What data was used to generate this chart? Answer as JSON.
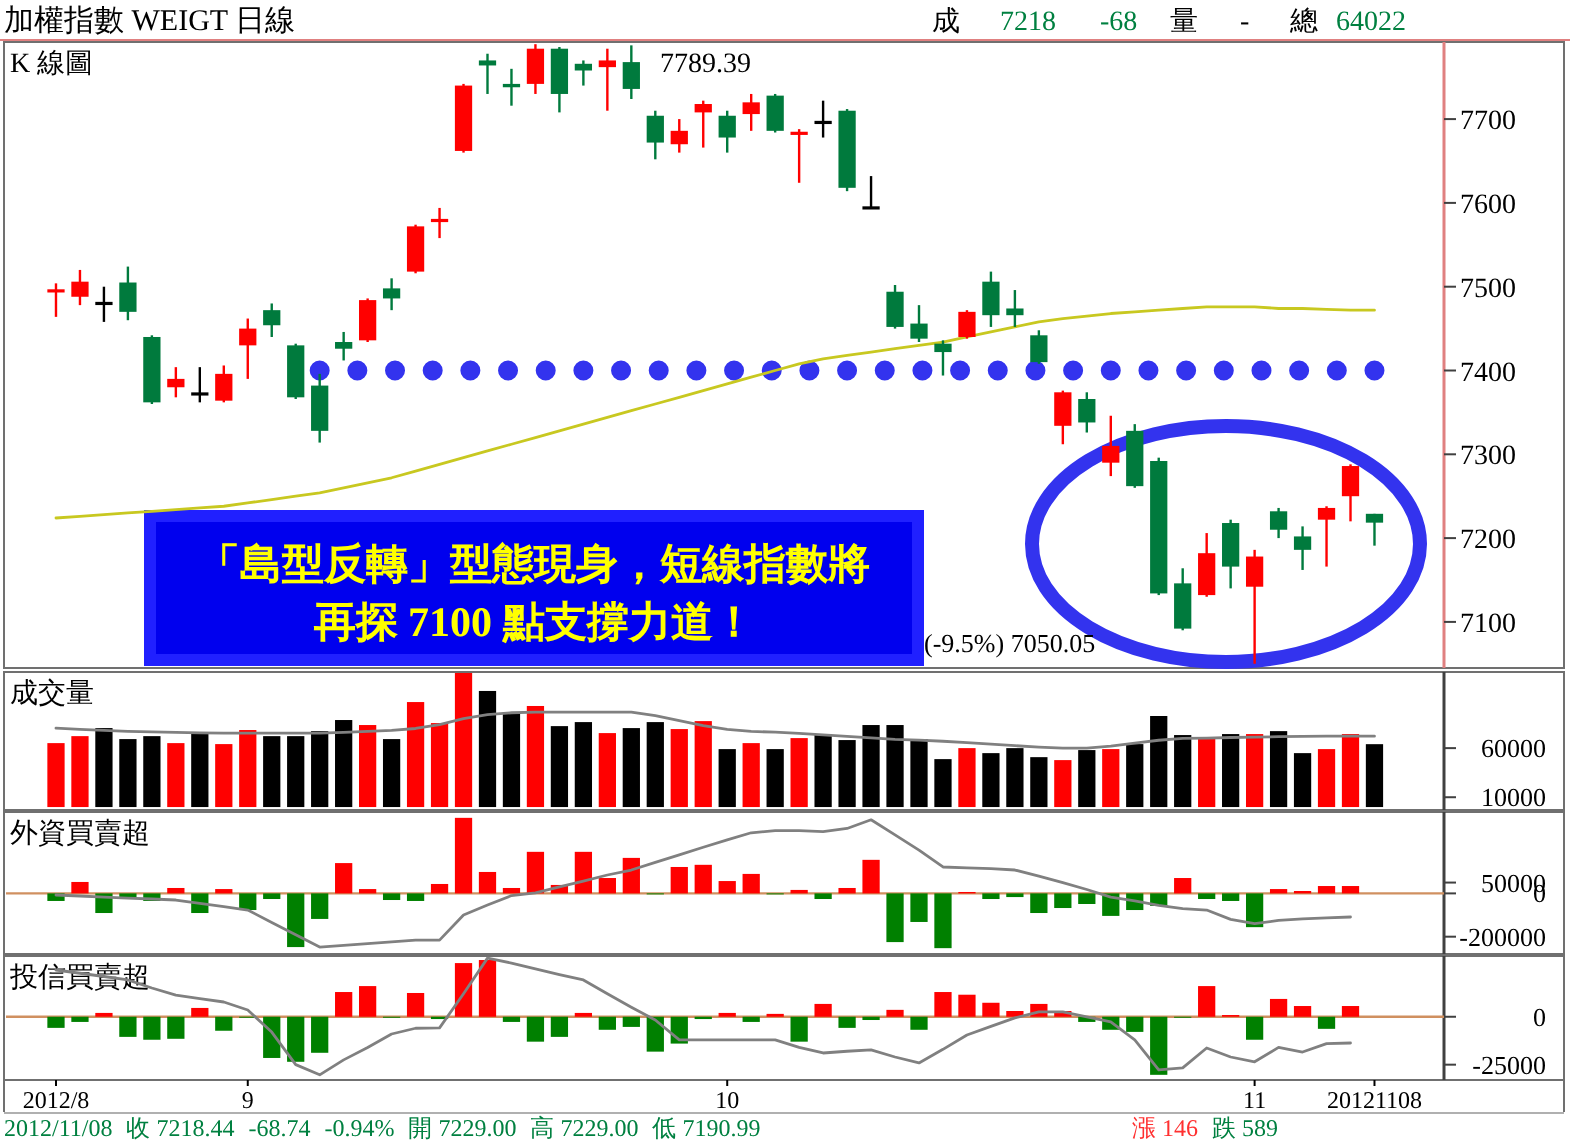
{
  "chart_data": [
    {
      "type": "candlestick",
      "title": "加權指數  WEIGT  日線",
      "subtitle": "K 線圖",
      "tick_labels": "y",
      "categories": [
        null,
        null,
        null,
        null,
        null,
        null,
        null,
        null,
        null,
        null,
        null,
        null,
        null,
        null,
        null,
        null,
        null,
        null,
        null,
        null,
        null,
        null,
        null,
        null,
        null,
        null,
        null,
        null,
        null,
        null,
        null,
        null,
        null,
        null,
        null,
        null,
        null,
        null,
        null,
        null,
        null,
        null,
        null,
        null,
        null,
        null,
        null,
        null,
        null,
        null,
        null,
        null,
        null,
        null,
        null,
        null
      ],
      "ylim": [
        7045,
        7792
      ],
      "yticks": [
        7100,
        7200,
        7300,
        7400,
        7500,
        7600,
        7700
      ],
      "ohlc": [
        [
          7494,
          7504,
          7464,
          7496
        ],
        [
          7488,
          7520,
          7478,
          7506
        ],
        [
          7480,
          7500,
          7458,
          7480
        ],
        [
          7505,
          7524,
          7460,
          7470
        ],
        [
          7440,
          7442,
          7360,
          7362
        ],
        [
          7380,
          7404,
          7368,
          7390
        ],
        [
          7372,
          7404,
          7362,
          7372
        ],
        [
          7364,
          7406,
          7362,
          7396
        ],
        [
          7430,
          7462,
          7390,
          7450
        ],
        [
          7472,
          7480,
          7440,
          7454
        ],
        [
          7430,
          7432,
          7366,
          7368
        ],
        [
          7382,
          7396,
          7314,
          7328
        ],
        [
          7434,
          7446,
          7412,
          7426
        ],
        [
          7436,
          7486,
          7434,
          7484
        ],
        [
          7498,
          7510,
          7472,
          7486
        ],
        [
          7518,
          7574,
          7516,
          7572
        ],
        [
          7578,
          7594,
          7558,
          7580
        ],
        [
          7662,
          7742,
          7660,
          7740
        ],
        [
          7770,
          7778,
          7730,
          7764
        ],
        [
          7742,
          7760,
          7716,
          7738
        ],
        [
          7742,
          7789.39,
          7730,
          7784
        ],
        [
          7784,
          7786,
          7708,
          7730
        ],
        [
          7766,
          7770,
          7740,
          7758
        ],
        [
          7762,
          7784,
          7710,
          7770
        ],
        [
          7768,
          7788,
          7724,
          7736
        ],
        [
          7704,
          7710,
          7652,
          7672
        ],
        [
          7670,
          7700,
          7660,
          7686
        ],
        [
          7708,
          7722,
          7666,
          7718
        ],
        [
          7704,
          7710,
          7660,
          7678
        ],
        [
          7706,
          7730,
          7686,
          7720
        ],
        [
          7728,
          7730,
          7684,
          7686
        ],
        [
          7682,
          7688,
          7624,
          7684
        ],
        [
          7696,
          7722,
          7678,
          7696
        ],
        [
          7710,
          7712,
          7614,
          7618
        ],
        [
          7594,
          7632,
          7594,
          7594
        ],
        [
          7494,
          7502,
          7450,
          7452
        ],
        [
          7456,
          7478,
          7434,
          7438
        ],
        [
          7432,
          7436,
          7394,
          7422
        ],
        [
          7440,
          7472,
          7438,
          7470
        ],
        [
          7506,
          7518,
          7452,
          7466
        ],
        [
          7474,
          7496,
          7452,
          7466
        ],
        [
          7442,
          7448,
          7408,
          7410
        ],
        [
          7334,
          7376,
          7312,
          7374
        ],
        [
          7366,
          7374,
          7326,
          7338
        ],
        [
          7290,
          7346,
          7274,
          7310
        ],
        [
          7328,
          7336,
          7260,
          7262
        ],
        [
          7292,
          7296,
          7132,
          7134
        ],
        [
          7146,
          7164,
          7090,
          7092
        ],
        [
          7132,
          7206,
          7130,
          7182
        ],
        [
          7218,
          7222,
          7140,
          7166
        ],
        [
          7142,
          7186,
          7050.05,
          7178
        ],
        [
          7232,
          7236,
          7200,
          7210
        ],
        [
          7202,
          7214,
          7162,
          7186
        ],
        [
          7222,
          7238,
          7166,
          7236
        ],
        [
          7250,
          7288,
          7220,
          7286
        ],
        [
          7229,
          7229,
          7190.99,
          7218.44
        ]
      ],
      "colors": [
        "#ff0000",
        "#ff0000",
        "#000000",
        "#007a3d",
        "#007a3d",
        "#ff0000",
        "#000000",
        "#ff0000",
        "#ff0000",
        "#007a3d",
        "#007a3d",
        "#007a3d",
        "#007a3d",
        "#ff0000",
        "#007a3d",
        "#ff0000",
        "#ff0000",
        "#ff0000",
        "#007a3d",
        "#007a3d",
        "#ff0000",
        "#007a3d",
        "#007a3d",
        "#ff0000",
        "#007a3d",
        "#007a3d",
        "#ff0000",
        "#ff0000",
        "#007a3d",
        "#ff0000",
        "#007a3d",
        "#ff0000",
        "#000000",
        "#007a3d",
        "#000000",
        "#007a3d",
        "#007a3d",
        "#007a3d",
        "#ff0000",
        "#007a3d",
        "#007a3d",
        "#007a3d",
        "#ff0000",
        "#007a3d",
        "#ff0000",
        "#007a3d",
        "#007a3d",
        "#007a3d",
        "#ff0000",
        "#007a3d",
        "#ff0000",
        "#007a3d",
        "#007a3d",
        "#ff0000",
        "#ff0000",
        "#007a3d"
      ],
      "series": [
        {
          "type": "line",
          "color": "#c8c820",
          "values": [
            7224,
            7226,
            7228,
            7230,
            7232,
            7234,
            7236,
            7238,
            7242,
            7246,
            7250,
            7254,
            7260,
            7266,
            7272,
            7280,
            7288,
            7296,
            7304,
            7312,
            7320,
            7328,
            7336,
            7344,
            7352,
            7360,
            7368,
            7376,
            7384,
            7392,
            7400,
            7408,
            7414,
            7418,
            7422,
            7426,
            7430,
            7434,
            7440,
            7446,
            7452,
            7458,
            7462,
            7465,
            7468,
            7470,
            7472,
            7474,
            7476,
            7476,
            7476,
            7474,
            7474,
            7473,
            7472,
            7472
          ]
        },
        {
          "type": "line",
          "color": "#3333ee",
          "line_style": "dotted",
          "values": [
            null,
            null,
            null,
            null,
            null,
            null,
            null,
            null,
            null,
            null,
            null,
            7400,
            7400,
            7400,
            7400,
            7400,
            7400,
            7400,
            7400,
            7400,
            7400,
            7400,
            7400,
            7400,
            7400,
            7400,
            7400,
            7400,
            7400,
            7400,
            7400,
            7400,
            7400,
            7400,
            7400,
            7400,
            7400,
            7400,
            7400,
            7400,
            7400,
            7400,
            7400,
            7400,
            7400,
            7400,
            7400,
            7400,
            7400,
            7400,
            7400,
            7400,
            7400,
            7400,
            7400,
            7400
          ]
        }
      ],
      "annotations": [
        "成",
        "7218",
        "-68",
        "量",
        "-",
        "總",
        "64022",
        "7789.39",
        "「島型反轉」型態現身，短線指數將",
        "再探 7100 點支撐力道！",
        "(-9.5%) 7050.05"
      ]
    },
    {
      "type": "bar",
      "subtitle": "成交量",
      "tick_labels": "y",
      "categories": [
        null,
        null,
        null,
        null,
        null,
        null,
        null,
        null,
        null,
        null,
        null,
        null,
        null,
        null,
        null,
        null,
        null,
        null,
        null,
        null,
        null,
        null,
        null,
        null,
        null,
        null,
        null,
        null,
        null,
        null,
        null,
        null,
        null,
        null,
        null,
        null,
        null,
        null,
        null,
        null,
        null,
        null,
        null,
        null,
        null,
        null,
        null,
        null,
        null,
        null,
        null,
        null,
        null,
        null,
        null,
        null
      ],
      "ylim": [
        -3000,
        137500
      ],
      "yticks": [
        60000,
        10000
      ],
      "series": [
        {
          "type": "bar",
          "values": [
            65100,
            72200,
            80400,
            69200,
            72200,
            65100,
            76300,
            64100,
            78400,
            72200,
            72200,
            77300,
            88600,
            83500,
            69200,
            106900,
            85500,
            136500,
            118200,
            96700,
            102900,
            82400,
            86500,
            75300,
            80400,
            86500,
            79400,
            87500,
            59000,
            65100,
            59000,
            70200,
            74300,
            68200,
            83500,
            83500,
            69200,
            48800,
            60000,
            54900,
            60000,
            50800,
            47800,
            58000,
            59000,
            64100,
            92700,
            73300,
            70200,
            74300,
            74300,
            77300,
            54900,
            59000,
            74300,
            64022
          ],
          "colors": [
            "#ff0000",
            "#ff0000",
            "#000000",
            "#000000",
            "#000000",
            "#ff0000",
            "#000000",
            "#ff0000",
            "#ff0000",
            "#000000",
            "#000000",
            "#000000",
            "#000000",
            "#ff0000",
            "#000000",
            "#ff0000",
            "#ff0000",
            "#ff0000",
            "#000000",
            "#000000",
            "#ff0000",
            "#000000",
            "#000000",
            "#ff0000",
            "#000000",
            "#000000",
            "#ff0000",
            "#ff0000",
            "#000000",
            "#ff0000",
            "#000000",
            "#ff0000",
            "#000000",
            "#000000",
            "#000000",
            "#000000",
            "#000000",
            "#000000",
            "#ff0000",
            "#000000",
            "#000000",
            "#000000",
            "#ff0000",
            "#000000",
            "#ff0000",
            "#000000",
            "#000000",
            "#000000",
            "#ff0000",
            "#000000",
            "#ff0000",
            "#000000",
            "#000000",
            "#ff0000",
            "#ff0000",
            "#000000"
          ]
        },
        {
          "type": "line",
          "color": "#808080",
          "values": [
            80400,
            79000,
            78000,
            77000,
            76500,
            76000,
            75500,
            75300,
            75300,
            75300,
            75300,
            75300,
            76000,
            77000,
            78000,
            80000,
            84000,
            90000,
            94000,
            96000,
            96700,
            96700,
            96700,
            96700,
            96700,
            93000,
            88000,
            83000,
            79000,
            77000,
            76300,
            75000,
            73500,
            72000,
            70500,
            69000,
            68200,
            67000,
            65500,
            64000,
            62500,
            61000,
            60000,
            60000,
            62000,
            65000,
            68000,
            70000,
            70200,
            70800,
            71200,
            71600,
            72000,
            72200,
            72200,
            72200
          ]
        }
      ]
    },
    {
      "type": "bar",
      "subtitle": "外資買賣超",
      "tick_labels": "y",
      "categories": [
        null,
        null,
        null,
        null,
        null,
        null,
        null,
        null,
        null,
        null,
        null,
        null,
        null,
        null,
        null,
        null,
        null,
        null,
        null,
        null,
        null,
        null,
        null,
        null,
        null,
        null,
        null,
        null,
        null,
        null,
        null,
        null,
        null,
        null,
        null,
        null,
        null,
        null,
        null,
        null,
        null,
        null,
        null,
        null,
        null,
        null,
        null,
        null,
        null,
        null,
        null,
        null,
        null,
        null,
        null,
        null
      ],
      "ylim": [
        -280000,
        376000
      ],
      "yticks": [
        50000,
        0,
        -200000
      ],
      "ref_lines": [
        {
          "axis": "y",
          "value": 0,
          "color": "#d09060"
        }
      ],
      "series": [
        {
          "type": "bar",
          "values": [
            -35000,
            52800,
            -90700,
            -26000,
            -35000,
            25000,
            -90700,
            20000,
            -76900,
            -26000,
            -248000,
            -118000,
            140000,
            20000,
            -30600,
            -35000,
            43500,
            349000,
            99000,
            25000,
            192000,
            39000,
            192000,
            71000,
            164000,
            -3000,
            122000,
            132000,
            57000,
            90000,
            0,
            16000,
            -26000,
            25000,
            155000,
            -225000,
            -132000,
            -253000,
            6500,
            -26000,
            -17000,
            -90700,
            -67600,
            -49000,
            -104000,
            -76900,
            -58000,
            71000,
            -26000,
            -35000,
            -156000,
            20000,
            11000,
            34000,
            34000,
            null
          ],
          "colors": [
            "#008000",
            "#ff0000",
            "#008000",
            "#008000",
            "#008000",
            "#ff0000",
            "#008000",
            "#ff0000",
            "#008000",
            "#008000",
            "#008000",
            "#008000",
            "#ff0000",
            "#ff0000",
            "#008000",
            "#008000",
            "#ff0000",
            "#ff0000",
            "#ff0000",
            "#ff0000",
            "#ff0000",
            "#ff0000",
            "#ff0000",
            "#ff0000",
            "#ff0000",
            "#008000",
            "#ff0000",
            "#ff0000",
            "#ff0000",
            "#ff0000",
            "#008000",
            "#ff0000",
            "#008000",
            "#ff0000",
            "#ff0000",
            "#008000",
            "#008000",
            "#008000",
            "#ff0000",
            "#008000",
            "#008000",
            "#008000",
            "#008000",
            "#008000",
            "#008000",
            "#008000",
            "#008000",
            "#ff0000",
            "#008000",
            "#008000",
            "#008000",
            "#ff0000",
            "#ff0000",
            "#ff0000",
            "#ff0000",
            "#008000"
          ]
        },
        {
          "type": "line",
          "color": "#808080",
          "values": [
            -7400,
            -12000,
            -17000,
            -22000,
            -26000,
            -30600,
            -46000,
            -61000,
            -77000,
            -134000,
            -191000,
            -248000,
            -240000,
            -232000,
            -224000,
            -216000,
            -216000,
            -100000,
            -54000,
            -10000,
            2000,
            30000,
            57000,
            85000,
            108000,
            143000,
            178000,
            213000,
            247000,
            280000,
            290000,
            290000,
            285000,
            300000,
            340000,
            270000,
            200000,
            122000,
            118000,
            114000,
            108000,
            80000,
            50000,
            18000,
            -17000,
            -35000,
            -55000,
            -70000,
            -77000,
            -120000,
            -140000,
            -125000,
            -118000,
            -113000,
            -109000,
            null
          ]
        }
      ]
    },
    {
      "type": "bar",
      "subtitle": "投信買賣超",
      "categories": [
        "2012/8",
        null,
        null,
        null,
        null,
        null,
        null,
        null,
        "9",
        null,
        null,
        null,
        null,
        null,
        null,
        null,
        null,
        null,
        null,
        null,
        null,
        null,
        null,
        null,
        null,
        null,
        null,
        null,
        "10",
        null,
        null,
        null,
        null,
        null,
        null,
        null,
        null,
        null,
        null,
        null,
        null,
        null,
        null,
        null,
        null,
        null,
        null,
        null,
        null,
        null,
        "11",
        null,
        null,
        null,
        null,
        "20121108"
      ],
      "ylim": [
        -33000,
        31700
      ],
      "yticks": [
        0,
        -25000
      ],
      "ref_lines": [
        {
          "axis": "y",
          "value": 0,
          "color": "#d09060"
        }
      ],
      "series": [
        {
          "type": "bar",
          "values": [
            -5800,
            -2700,
            2000,
            -10500,
            -12000,
            -11500,
            4600,
            -7300,
            0,
            -21500,
            -23500,
            -18800,
            12900,
            16000,
            0,
            12400,
            -1200,
            28000,
            29600,
            -2700,
            -13000,
            -10500,
            2000,
            -6800,
            -5300,
            -18200,
            -14000,
            -1200,
            2000,
            -2700,
            1500,
            -13000,
            6700,
            -5800,
            -1700,
            3600,
            -6800,
            12900,
            11500,
            7300,
            3000,
            6700,
            3000,
            -2700,
            -6800,
            -7900,
            -30300,
            0,
            16000,
            900,
            -12000,
            9300,
            5600,
            -6300,
            5600,
            null
          ],
          "colors": [
            "#008000",
            "#008000",
            "#ff0000",
            "#008000",
            "#008000",
            "#008000",
            "#ff0000",
            "#008000",
            "#008000",
            "#008000",
            "#008000",
            "#008000",
            "#ff0000",
            "#ff0000",
            "#008000",
            "#ff0000",
            "#008000",
            "#ff0000",
            "#ff0000",
            "#008000",
            "#008000",
            "#008000",
            "#ff0000",
            "#008000",
            "#008000",
            "#008000",
            "#008000",
            "#008000",
            "#ff0000",
            "#008000",
            "#ff0000",
            "#008000",
            "#ff0000",
            "#008000",
            "#008000",
            "#ff0000",
            "#008000",
            "#ff0000",
            "#ff0000",
            "#ff0000",
            "#ff0000",
            "#ff0000",
            "#ff0000",
            "#008000",
            "#008000",
            "#008000",
            "#008000",
            "#008000",
            "#ff0000",
            "#ff0000",
            "#008000",
            "#ff0000",
            "#ff0000",
            "#008000",
            "#ff0000",
            "#008000"
          ]
        },
        {
          "type": "line",
          "color": "#808080",
          "values": [
            24400,
            22700,
            21000,
            19200,
            15000,
            11300,
            9500,
            7700,
            3500,
            -8000,
            -25000,
            -30300,
            -22500,
            -16000,
            -9000,
            -6000,
            -5800,
            12000,
            30600,
            28000,
            25000,
            22000,
            19200,
            12000,
            5000,
            -1700,
            -12100,
            -12100,
            -12100,
            -12100,
            -12100,
            -16000,
            -18900,
            -18000,
            -17300,
            -21000,
            -24100,
            -17000,
            -9500,
            -5000,
            -600,
            2500,
            2500,
            0,
            -2700,
            -12100,
            -27700,
            -26700,
            -16300,
            -21000,
            -23500,
            -16000,
            -18400,
            -14000,
            -13700,
            null
          ]
        }
      ],
      "annotations": [
        "2012/11/08",
        "收 7218.44",
        "-68.74",
        "-0.94%",
        "開 7229.00",
        "高 7229.00",
        "低 7190.99",
        "漲 146",
        "跌 589"
      ]
    }
  ]
}
